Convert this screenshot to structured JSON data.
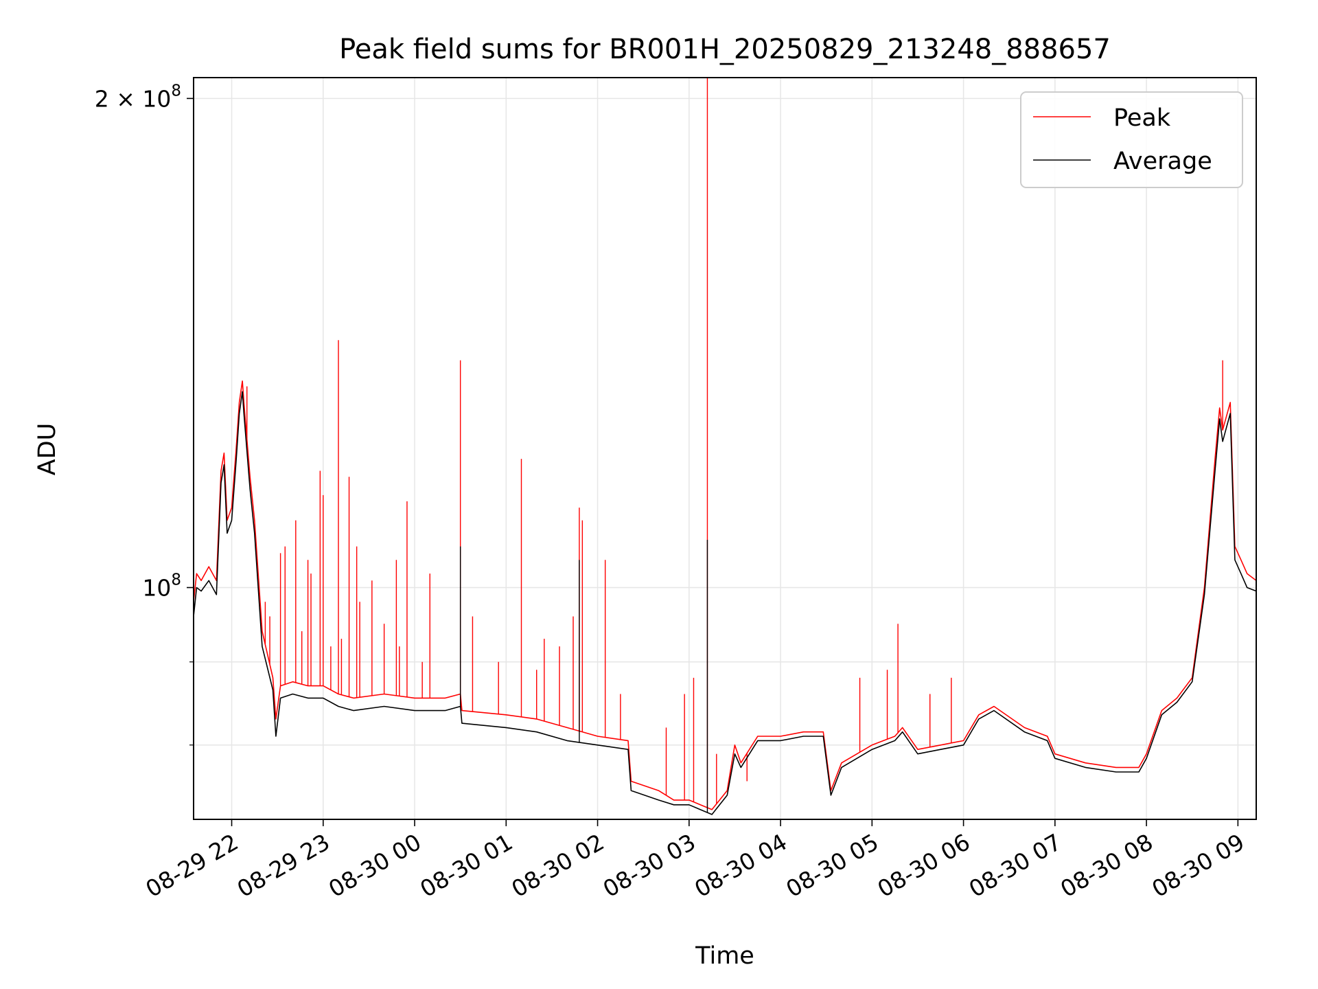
{
  "chart_data": {
    "type": "line",
    "title": "Peak field sums for BR001H_20250829_213248_888657",
    "xlabel": "Time",
    "ylabel": "ADU",
    "yscale": "log",
    "grid": true,
    "legend_position": "top-right",
    "x_range": [
      "2025-08-29 21:35",
      "2025-08-30 09:12"
    ],
    "ylim": [
      72000000,
      206000000
    ],
    "x_ticks": [
      {
        "t": "2025-08-29 22:00",
        "label": "08-29 22"
      },
      {
        "t": "2025-08-29 23:00",
        "label": "08-29 23"
      },
      {
        "t": "2025-08-30 00:00",
        "label": "08-30 00"
      },
      {
        "t": "2025-08-30 01:00",
        "label": "08-30 01"
      },
      {
        "t": "2025-08-30 02:00",
        "label": "08-30 02"
      },
      {
        "t": "2025-08-30 03:00",
        "label": "08-30 03"
      },
      {
        "t": "2025-08-30 04:00",
        "label": "08-30 04"
      },
      {
        "t": "2025-08-30 05:00",
        "label": "08-30 05"
      },
      {
        "t": "2025-08-30 06:00",
        "label": "08-30 06"
      },
      {
        "t": "2025-08-30 07:00",
        "label": "08-30 07"
      },
      {
        "t": "2025-08-30 08:00",
        "label": "08-30 08"
      },
      {
        "t": "2025-08-30 09:00",
        "label": "08-30 09"
      }
    ],
    "y_ticks": [
      {
        "value": 100000000,
        "base": "10",
        "exp": "8"
      },
      {
        "value": 200000000,
        "base": "2 × 10",
        "exp": "8"
      }
    ],
    "y_minor_ticks": [
      80000000,
      90000000
    ],
    "series": [
      {
        "name": "Peak",
        "color": "#ff0000",
        "points": [
          [
            "2025-08-29 21:35",
            98000000
          ],
          [
            "2025-08-29 21:37",
            102000000
          ],
          [
            "2025-08-29 21:40",
            101000000
          ],
          [
            "2025-08-29 21:45",
            103000000
          ],
          [
            "2025-08-29 21:50",
            101000000
          ],
          [
            "2025-08-29 21:53",
            118000000
          ],
          [
            "2025-08-29 21:55",
            121000000
          ],
          [
            "2025-08-29 21:57",
            110000000
          ],
          [
            "2025-08-29 22:00",
            112000000
          ],
          [
            "2025-08-29 22:03",
            122000000
          ],
          [
            "2025-08-29 22:05",
            130000000
          ],
          [
            "2025-08-29 22:07",
            134000000
          ],
          [
            "2025-08-29 22:08",
            130000000
          ],
          [
            "2025-08-29 22:12",
            117000000
          ],
          [
            "2025-08-29 22:15",
            110000000
          ],
          [
            "2025-08-29 22:20",
            94000000
          ],
          [
            "2025-08-29 22:27",
            88000000
          ],
          [
            "2025-08-29 22:29",
            83000000
          ],
          [
            "2025-08-29 22:32",
            87000000
          ],
          [
            "2025-08-29 22:40",
            87500000
          ],
          [
            "2025-08-29 22:50",
            87000000
          ],
          [
            "2025-08-29 23:00",
            87000000
          ],
          [
            "2025-08-29 23:10",
            86000000
          ],
          [
            "2025-08-29 23:20",
            85500000
          ],
          [
            "2025-08-29 23:40",
            86000000
          ],
          [
            "2025-08-30 00:00",
            85500000
          ],
          [
            "2025-08-30 00:20",
            85500000
          ],
          [
            "2025-08-30 00:30",
            86000000
          ],
          [
            "2025-08-30 00:31",
            84000000
          ],
          [
            "2025-08-30 01:00",
            83500000
          ],
          [
            "2025-08-30 01:20",
            83000000
          ],
          [
            "2025-08-30 01:40",
            82000000
          ],
          [
            "2025-08-30 02:00",
            81000000
          ],
          [
            "2025-08-30 02:20",
            80500000
          ],
          [
            "2025-08-30 02:22",
            76000000
          ],
          [
            "2025-08-30 02:40",
            75000000
          ],
          [
            "2025-08-30 02:50",
            74000000
          ],
          [
            "2025-08-30 03:00",
            74000000
          ],
          [
            "2025-08-30 03:15",
            73000000
          ],
          [
            "2025-08-30 03:25",
            75000000
          ],
          [
            "2025-08-30 03:30",
            80000000
          ],
          [
            "2025-08-30 03:34",
            78000000
          ],
          [
            "2025-08-30 03:45",
            81000000
          ],
          [
            "2025-08-30 04:00",
            81000000
          ],
          [
            "2025-08-30 04:15",
            81500000
          ],
          [
            "2025-08-30 04:28",
            81500000
          ],
          [
            "2025-08-30 04:33",
            75000000
          ],
          [
            "2025-08-30 04:40",
            78000000
          ],
          [
            "2025-08-30 05:00",
            80000000
          ],
          [
            "2025-08-30 05:15",
            81000000
          ],
          [
            "2025-08-30 05:20",
            82000000
          ],
          [
            "2025-08-30 05:30",
            79500000
          ],
          [
            "2025-08-30 05:45",
            80000000
          ],
          [
            "2025-08-30 06:00",
            80500000
          ],
          [
            "2025-08-30 06:10",
            83500000
          ],
          [
            "2025-08-30 06:20",
            84500000
          ],
          [
            "2025-08-30 06:40",
            82000000
          ],
          [
            "2025-08-30 06:55",
            81000000
          ],
          [
            "2025-08-30 07:00",
            79000000
          ],
          [
            "2025-08-30 07:20",
            78000000
          ],
          [
            "2025-08-30 07:40",
            77500000
          ],
          [
            "2025-08-30 07:55",
            77500000
          ],
          [
            "2025-08-30 08:00",
            79000000
          ],
          [
            "2025-08-30 08:10",
            84000000
          ],
          [
            "2025-08-30 08:20",
            85500000
          ],
          [
            "2025-08-30 08:30",
            88000000
          ],
          [
            "2025-08-30 08:38",
            100000000
          ],
          [
            "2025-08-30 08:45",
            120000000
          ],
          [
            "2025-08-30 08:48",
            129000000
          ],
          [
            "2025-08-30 08:50",
            125000000
          ],
          [
            "2025-08-30 08:55",
            130000000
          ],
          [
            "2025-08-30 08:58",
            106000000
          ],
          [
            "2025-08-30 09:02",
            104000000
          ],
          [
            "2025-08-30 09:06",
            102000000
          ],
          [
            "2025-08-30 09:12",
            101000000
          ]
        ],
        "spikes": [
          [
            "2025-08-29 22:10",
            133000000
          ],
          [
            "2025-08-29 22:22",
            98000000
          ],
          [
            "2025-08-29 22:25",
            96000000
          ],
          [
            "2025-08-29 22:32",
            105000000
          ],
          [
            "2025-08-29 22:35",
            106000000
          ],
          [
            "2025-08-29 22:42",
            110000000
          ],
          [
            "2025-08-29 22:46",
            94000000
          ],
          [
            "2025-08-29 22:50",
            104000000
          ],
          [
            "2025-08-29 22:52",
            102000000
          ],
          [
            "2025-08-29 22:58",
            118000000
          ],
          [
            "2025-08-29 23:00",
            114000000
          ],
          [
            "2025-08-29 23:05",
            92000000
          ],
          [
            "2025-08-29 23:10",
            142000000
          ],
          [
            "2025-08-29 23:12",
            93000000
          ],
          [
            "2025-08-29 23:17",
            117000000
          ],
          [
            "2025-08-29 23:22",
            106000000
          ],
          [
            "2025-08-29 23:24",
            98000000
          ],
          [
            "2025-08-29 23:32",
            101000000
          ],
          [
            "2025-08-29 23:40",
            95000000
          ],
          [
            "2025-08-29 23:48",
            104000000
          ],
          [
            "2025-08-29 23:50",
            92000000
          ],
          [
            "2025-08-29 23:55",
            113000000
          ],
          [
            "2025-08-30 00:05",
            90000000
          ],
          [
            "2025-08-30 00:10",
            102000000
          ],
          [
            "2025-08-30 00:30",
            138000000
          ],
          [
            "2025-08-30 00:38",
            96000000
          ],
          [
            "2025-08-30 00:55",
            90000000
          ],
          [
            "2025-08-30 01:10",
            120000000
          ],
          [
            "2025-08-30 01:20",
            89000000
          ],
          [
            "2025-08-30 01:25",
            93000000
          ],
          [
            "2025-08-30 01:35",
            92000000
          ],
          [
            "2025-08-30 01:44",
            96000000
          ],
          [
            "2025-08-30 01:48",
            112000000
          ],
          [
            "2025-08-30 01:50",
            110000000
          ],
          [
            "2025-08-30 02:05",
            104000000
          ],
          [
            "2025-08-30 02:15",
            86000000
          ],
          [
            "2025-08-30 02:45",
            82000000
          ],
          [
            "2025-08-30 02:57",
            86000000
          ],
          [
            "2025-08-30 03:03",
            88000000
          ],
          [
            "2025-08-30 03:12",
            206000000
          ],
          [
            "2025-08-30 03:18",
            79000000
          ],
          [
            "2025-08-30 03:38",
            76000000
          ],
          [
            "2025-08-30 04:52",
            88000000
          ],
          [
            "2025-08-30 05:10",
            89000000
          ],
          [
            "2025-08-30 05:17",
            95000000
          ],
          [
            "2025-08-30 05:38",
            86000000
          ],
          [
            "2025-08-30 05:52",
            88000000
          ],
          [
            "2025-08-30 08:50",
            138000000
          ]
        ]
      },
      {
        "name": "Average",
        "color": "#000000",
        "points": [
          [
            "2025-08-29 21:35",
            96000000
          ],
          [
            "2025-08-29 21:37",
            100000000
          ],
          [
            "2025-08-29 21:40",
            99500000
          ],
          [
            "2025-08-29 21:45",
            101000000
          ],
          [
            "2025-08-29 21:50",
            99000000
          ],
          [
            "2025-08-29 21:53",
            116000000
          ],
          [
            "2025-08-29 21:55",
            119000000
          ],
          [
            "2025-08-29 21:57",
            108000000
          ],
          [
            "2025-08-29 22:00",
            110000000
          ],
          [
            "2025-08-29 22:03",
            120000000
          ],
          [
            "2025-08-29 22:05",
            128000000
          ],
          [
            "2025-08-29 22:07",
            132000000
          ],
          [
            "2025-08-29 22:08",
            128000000
          ],
          [
            "2025-08-29 22:12",
            115000000
          ],
          [
            "2025-08-29 22:15",
            108000000
          ],
          [
            "2025-08-29 22:20",
            92000000
          ],
          [
            "2025-08-29 22:27",
            86500000
          ],
          [
            "2025-08-29 22:29",
            81000000
          ],
          [
            "2025-08-29 22:32",
            85500000
          ],
          [
            "2025-08-29 22:40",
            86000000
          ],
          [
            "2025-08-29 22:50",
            85500000
          ],
          [
            "2025-08-29 23:00",
            85500000
          ],
          [
            "2025-08-29 23:10",
            84500000
          ],
          [
            "2025-08-29 23:20",
            84000000
          ],
          [
            "2025-08-29 23:40",
            84500000
          ],
          [
            "2025-08-30 00:00",
            84000000
          ],
          [
            "2025-08-30 00:20",
            84000000
          ],
          [
            "2025-08-30 00:30",
            84500000
          ],
          [
            "2025-08-30 00:31",
            82500000
          ],
          [
            "2025-08-30 01:00",
            82000000
          ],
          [
            "2025-08-30 01:20",
            81500000
          ],
          [
            "2025-08-30 01:40",
            80500000
          ],
          [
            "2025-08-30 02:00",
            80000000
          ],
          [
            "2025-08-30 02:20",
            79500000
          ],
          [
            "2025-08-30 02:22",
            75000000
          ],
          [
            "2025-08-30 02:40",
            74000000
          ],
          [
            "2025-08-30 02:50",
            73500000
          ],
          [
            "2025-08-30 03:00",
            73500000
          ],
          [
            "2025-08-30 03:15",
            72500000
          ],
          [
            "2025-08-30 03:25",
            74500000
          ],
          [
            "2025-08-30 03:30",
            79000000
          ],
          [
            "2025-08-30 03:34",
            77500000
          ],
          [
            "2025-08-30 03:45",
            80500000
          ],
          [
            "2025-08-30 04:00",
            80500000
          ],
          [
            "2025-08-30 04:15",
            81000000
          ],
          [
            "2025-08-30 04:28",
            81000000
          ],
          [
            "2025-08-30 04:33",
            74500000
          ],
          [
            "2025-08-30 04:40",
            77500000
          ],
          [
            "2025-08-30 05:00",
            79500000
          ],
          [
            "2025-08-30 05:15",
            80500000
          ],
          [
            "2025-08-30 05:20",
            81500000
          ],
          [
            "2025-08-30 05:30",
            79000000
          ],
          [
            "2025-08-30 05:45",
            79500000
          ],
          [
            "2025-08-30 06:00",
            80000000
          ],
          [
            "2025-08-30 06:10",
            83000000
          ],
          [
            "2025-08-30 06:20",
            84000000
          ],
          [
            "2025-08-30 06:40",
            81500000
          ],
          [
            "2025-08-30 06:55",
            80500000
          ],
          [
            "2025-08-30 07:00",
            78500000
          ],
          [
            "2025-08-30 07:20",
            77500000
          ],
          [
            "2025-08-30 07:40",
            77000000
          ],
          [
            "2025-08-30 07:55",
            77000000
          ],
          [
            "2025-08-30 08:00",
            78500000
          ],
          [
            "2025-08-30 08:10",
            83500000
          ],
          [
            "2025-08-30 08:20",
            85000000
          ],
          [
            "2025-08-30 08:30",
            87500000
          ],
          [
            "2025-08-30 08:38",
            99000000
          ],
          [
            "2025-08-30 08:45",
            118000000
          ],
          [
            "2025-08-30 08:48",
            127000000
          ],
          [
            "2025-08-30 08:50",
            123000000
          ],
          [
            "2025-08-30 08:55",
            128000000
          ],
          [
            "2025-08-30 08:58",
            104000000
          ],
          [
            "2025-08-30 09:02",
            102000000
          ],
          [
            "2025-08-30 09:06",
            100000000
          ],
          [
            "2025-08-30 09:12",
            99500000
          ]
        ],
        "spikes": [
          [
            "2025-08-30 00:30",
            106000000
          ],
          [
            "2025-08-30 01:48",
            104000000
          ],
          [
            "2025-08-30 03:12",
            107000000
          ]
        ]
      }
    ]
  }
}
